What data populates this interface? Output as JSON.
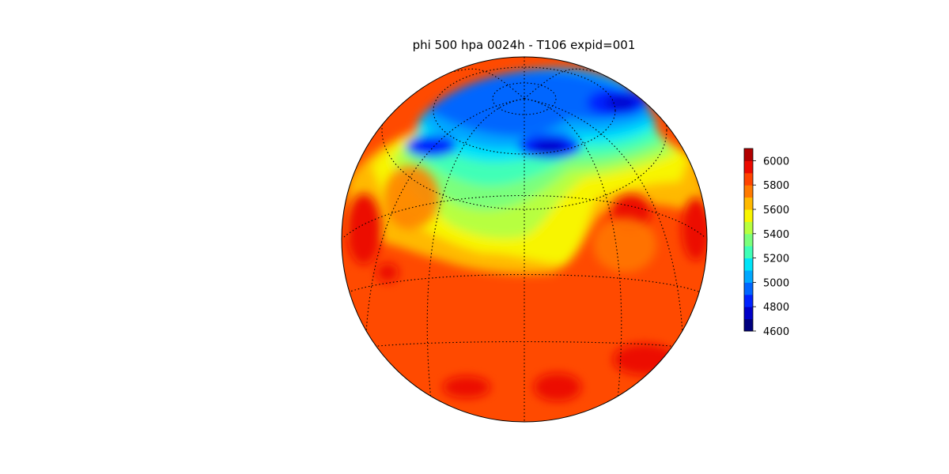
{
  "title": "phi 500 hpa 0024h - T106 expid=001",
  "colorbar": {
    "ticks": [
      "6000",
      "5800",
      "5600",
      "5400",
      "5200",
      "5000",
      "4800",
      "4600"
    ],
    "min": 4600,
    "max": 6100,
    "colors": [
      "#00007f",
      "#0000c8",
      "#0022ff",
      "#0066ff",
      "#00a8ff",
      "#00e4f8",
      "#3fffb7",
      "#7bff7b",
      "#b7ff3f",
      "#f8f500",
      "#ffb900",
      "#ff7a00",
      "#ff4300",
      "#ec0a00",
      "#b20000"
    ]
  },
  "map": {
    "projection": "orthographic",
    "center": "North America",
    "field": "500 hPa geopotential height",
    "graticule": "dotted"
  }
}
